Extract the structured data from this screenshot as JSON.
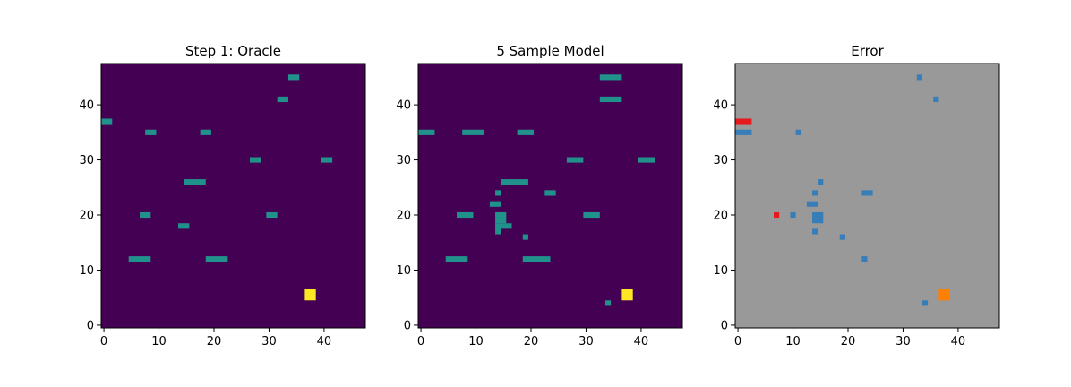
{
  "chart_data": [
    {
      "type": "heatmap",
      "title": "Step 1: Oracle",
      "xlim": [
        -0.5,
        47.5
      ],
      "ylim": [
        -0.5,
        47.5
      ],
      "xticks": [
        0,
        10,
        20,
        30,
        40
      ],
      "yticks": [
        0,
        10,
        20,
        30,
        40
      ],
      "background": "#440154",
      "cell_colors": {
        "object": "#21918c",
        "agent": "#fde725"
      },
      "cells": [
        {
          "x": [
            34,
            35
          ],
          "y": 45,
          "kind": "object"
        },
        {
          "x": [
            32,
            33
          ],
          "y": 41,
          "kind": "object"
        },
        {
          "x": [
            0,
            1
          ],
          "y": 37,
          "kind": "object"
        },
        {
          "x": [
            8,
            9
          ],
          "y": 35,
          "kind": "object"
        },
        {
          "x": [
            18,
            19
          ],
          "y": 35,
          "kind": "object"
        },
        {
          "x": [
            27,
            28
          ],
          "y": 30,
          "kind": "object"
        },
        {
          "x": [
            40,
            41
          ],
          "y": 30,
          "kind": "object"
        },
        {
          "x": [
            15,
            18
          ],
          "y": 26,
          "kind": "object"
        },
        {
          "x": [
            7,
            8
          ],
          "y": 20,
          "kind": "object"
        },
        {
          "x": [
            30,
            31
          ],
          "y": 20,
          "kind": "object"
        },
        {
          "x": [
            14,
            15
          ],
          "y": 18,
          "kind": "object"
        },
        {
          "x": [
            5,
            8
          ],
          "y": 12,
          "kind": "object"
        },
        {
          "x": [
            19,
            22
          ],
          "y": 12,
          "kind": "object"
        },
        {
          "x": [
            37,
            38
          ],
          "y": [
            5,
            6
          ],
          "kind": "agent"
        }
      ]
    },
    {
      "type": "heatmap",
      "title": "5 Sample Model",
      "xlim": [
        -0.5,
        47.5
      ],
      "ylim": [
        -0.5,
        47.5
      ],
      "xticks": [
        0,
        10,
        20,
        30,
        40
      ],
      "yticks": [
        0,
        10,
        20,
        30,
        40
      ],
      "background": "#440154",
      "cell_colors": {
        "object": "#21918c",
        "agent": "#fde725"
      },
      "cells": [
        {
          "x": [
            33,
            36
          ],
          "y": 45,
          "kind": "object"
        },
        {
          "x": [
            33,
            36
          ],
          "y": 41,
          "kind": "object"
        },
        {
          "x": [
            0,
            2
          ],
          "y": 35,
          "kind": "object"
        },
        {
          "x": [
            8,
            11
          ],
          "y": 35,
          "kind": "object"
        },
        {
          "x": [
            18,
            20
          ],
          "y": 35,
          "kind": "object"
        },
        {
          "x": [
            27,
            29
          ],
          "y": 30,
          "kind": "object"
        },
        {
          "x": [
            40,
            42
          ],
          "y": 30,
          "kind": "object"
        },
        {
          "x": [
            15,
            19
          ],
          "y": 26,
          "kind": "object"
        },
        {
          "x": [
            23,
            24
          ],
          "y": 24,
          "kind": "object"
        },
        {
          "x": [
            14,
            14
          ],
          "y": 24,
          "kind": "object"
        },
        {
          "x": [
            13,
            14
          ],
          "y": 22,
          "kind": "object"
        },
        {
          "x": [
            7,
            9
          ],
          "y": 20,
          "kind": "object"
        },
        {
          "x": [
            30,
            32
          ],
          "y": 20,
          "kind": "object"
        },
        {
          "x": [
            14,
            15
          ],
          "y": [
            19,
            20
          ],
          "kind": "object"
        },
        {
          "x": [
            14,
            14
          ],
          "y": [
            17,
            18
          ],
          "kind": "object"
        },
        {
          "x": [
            15,
            16
          ],
          "y": 18,
          "kind": "object"
        },
        {
          "x": [
            19,
            19
          ],
          "y": 16,
          "kind": "object"
        },
        {
          "x": [
            5,
            8
          ],
          "y": 12,
          "kind": "object"
        },
        {
          "x": [
            19,
            23
          ],
          "y": 12,
          "kind": "object"
        },
        {
          "x": [
            34,
            34
          ],
          "y": 4,
          "kind": "object"
        },
        {
          "x": [
            37,
            38
          ],
          "y": [
            5,
            6
          ],
          "kind": "agent"
        }
      ]
    },
    {
      "type": "heatmap",
      "title": "Error",
      "xlim": [
        -0.5,
        47.5
      ],
      "ylim": [
        -0.5,
        47.5
      ],
      "xticks": [
        0,
        10,
        20,
        30,
        40
      ],
      "yticks": [
        0,
        10,
        20,
        30,
        40
      ],
      "background": "#999999",
      "cell_colors": {
        "false_positive": "#377eb8",
        "false_negative": "#e41a1c",
        "agent": "#ff7f00"
      },
      "cells": [
        {
          "x": [
            33,
            33
          ],
          "y": 45,
          "kind": "false_positive"
        },
        {
          "x": [
            36,
            36
          ],
          "y": 41,
          "kind": "false_positive"
        },
        {
          "x": [
            0,
            2
          ],
          "y": 37,
          "kind": "false_negative"
        },
        {
          "x": [
            0,
            2
          ],
          "y": 35,
          "kind": "false_positive"
        },
        {
          "x": [
            11,
            11
          ],
          "y": 35,
          "kind": "false_positive"
        },
        {
          "x": [
            15,
            15
          ],
          "y": 26,
          "kind": "false_positive"
        },
        {
          "x": [
            14,
            14
          ],
          "y": 24,
          "kind": "false_positive"
        },
        {
          "x": [
            23,
            24
          ],
          "y": 24,
          "kind": "false_positive"
        },
        {
          "x": [
            13,
            14
          ],
          "y": 22,
          "kind": "false_positive"
        },
        {
          "x": [
            7,
            7
          ],
          "y": 20,
          "kind": "false_negative"
        },
        {
          "x": [
            10,
            10
          ],
          "y": 20,
          "kind": "false_positive"
        },
        {
          "x": [
            14,
            15
          ],
          "y": [
            19,
            20
          ],
          "kind": "false_positive"
        },
        {
          "x": [
            14,
            14
          ],
          "y": 17,
          "kind": "false_positive"
        },
        {
          "x": [
            19,
            19
          ],
          "y": 16,
          "kind": "false_positive"
        },
        {
          "x": [
            23,
            23
          ],
          "y": 12,
          "kind": "false_positive"
        },
        {
          "x": [
            34,
            34
          ],
          "y": 4,
          "kind": "false_positive"
        },
        {
          "x": [
            37,
            38
          ],
          "y": [
            5,
            6
          ],
          "kind": "agent"
        }
      ]
    }
  ]
}
